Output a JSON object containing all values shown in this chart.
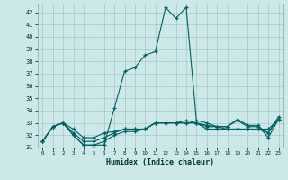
{
  "title": "",
  "xlabel": "Humidex (Indice chaleur)",
  "bg_color": "#cce8e8",
  "grid_color": "#aac8c8",
  "line_color": "#005f5f",
  "xlim": [
    -0.5,
    23.5
  ],
  "ylim": [
    31,
    42.7
  ],
  "yticks": [
    31,
    32,
    33,
    34,
    35,
    36,
    37,
    38,
    39,
    40,
    41,
    42
  ],
  "xticks": [
    0,
    1,
    2,
    3,
    4,
    5,
    6,
    7,
    8,
    9,
    10,
    11,
    12,
    13,
    14,
    15,
    16,
    17,
    18,
    19,
    20,
    21,
    22,
    23
  ],
  "series": [
    [
      31.5,
      32.7,
      33.0,
      32.0,
      31.2,
      31.2,
      31.2,
      34.2,
      37.2,
      37.5,
      38.5,
      38.8,
      42.4,
      41.5,
      42.4,
      33.2,
      33.0,
      32.7,
      32.7,
      33.3,
      32.8,
      32.8,
      31.8,
      33.3
    ],
    [
      31.5,
      32.7,
      33.0,
      32.5,
      31.8,
      31.8,
      32.2,
      32.3,
      32.5,
      32.5,
      32.5,
      33.0,
      33.0,
      33.0,
      33.0,
      33.0,
      32.8,
      32.7,
      32.5,
      32.5,
      32.5,
      32.5,
      32.5,
      33.3
    ],
    [
      31.5,
      32.7,
      33.0,
      32.0,
      31.2,
      31.2,
      31.5,
      32.0,
      32.3,
      32.3,
      32.5,
      33.0,
      33.0,
      33.0,
      33.0,
      33.0,
      32.5,
      32.5,
      32.5,
      32.5,
      32.5,
      32.5,
      32.2,
      33.3
    ],
    [
      31.5,
      32.7,
      33.0,
      32.2,
      31.5,
      31.5,
      31.8,
      32.2,
      32.5,
      32.5,
      32.5,
      33.0,
      33.0,
      33.0,
      33.2,
      33.0,
      32.7,
      32.7,
      32.7,
      33.2,
      32.7,
      32.7,
      32.2,
      33.5
    ]
  ]
}
